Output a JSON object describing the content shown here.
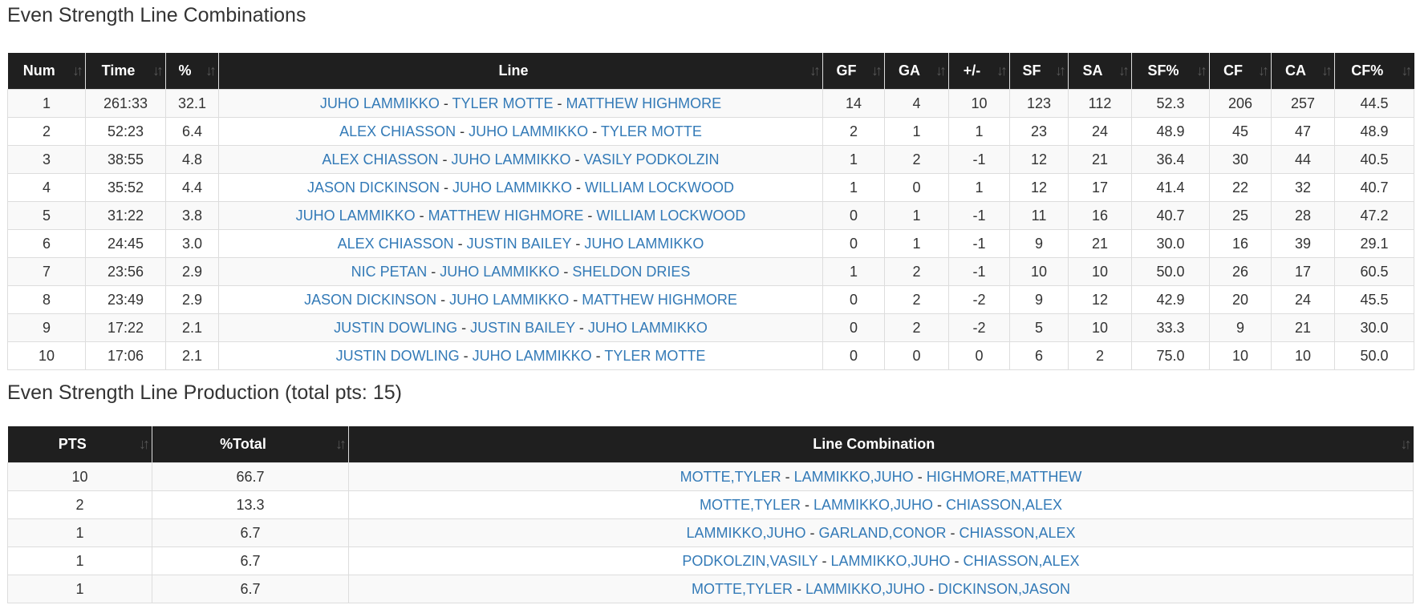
{
  "combos": {
    "title": "Even Strength Line Combinations",
    "headers": [
      "Num",
      "Time",
      "%",
      "Line",
      "GF",
      "GA",
      "+/-",
      "SF",
      "SA",
      "SF%",
      "CF",
      "CA",
      "CF%"
    ],
    "rows": [
      {
        "num": "1",
        "time": "261:33",
        "pct": "32.1",
        "players": [
          "JUHO LAMMIKKO",
          "TYLER MOTTE",
          "MATTHEW HIGHMORE"
        ],
        "stats": [
          "14",
          "4",
          "10",
          "123",
          "112",
          "52.3",
          "206",
          "257",
          "44.5"
        ]
      },
      {
        "num": "2",
        "time": "52:23",
        "pct": "6.4",
        "players": [
          "ALEX CHIASSON",
          "JUHO LAMMIKKO",
          "TYLER MOTTE"
        ],
        "stats": [
          "2",
          "1",
          "1",
          "23",
          "24",
          "48.9",
          "45",
          "47",
          "48.9"
        ]
      },
      {
        "num": "3",
        "time": "38:55",
        "pct": "4.8",
        "players": [
          "ALEX CHIASSON",
          "JUHO LAMMIKKO",
          "VASILY PODKOLZIN"
        ],
        "stats": [
          "1",
          "2",
          "-1",
          "12",
          "21",
          "36.4",
          "30",
          "44",
          "40.5"
        ]
      },
      {
        "num": "4",
        "time": "35:52",
        "pct": "4.4",
        "players": [
          "JASON DICKINSON",
          "JUHO LAMMIKKO",
          "WILLIAM LOCKWOOD"
        ],
        "stats": [
          "1",
          "0",
          "1",
          "12",
          "17",
          "41.4",
          "22",
          "32",
          "40.7"
        ]
      },
      {
        "num": "5",
        "time": "31:22",
        "pct": "3.8",
        "players": [
          "JUHO LAMMIKKO",
          "MATTHEW HIGHMORE",
          "WILLIAM LOCKWOOD"
        ],
        "stats": [
          "0",
          "1",
          "-1",
          "11",
          "16",
          "40.7",
          "25",
          "28",
          "47.2"
        ]
      },
      {
        "num": "6",
        "time": "24:45",
        "pct": "3.0",
        "players": [
          "ALEX CHIASSON",
          "JUSTIN BAILEY",
          "JUHO LAMMIKKO"
        ],
        "stats": [
          "0",
          "1",
          "-1",
          "9",
          "21",
          "30.0",
          "16",
          "39",
          "29.1"
        ]
      },
      {
        "num": "7",
        "time": "23:56",
        "pct": "2.9",
        "players": [
          "NIC PETAN",
          "JUHO LAMMIKKO",
          "SHELDON DRIES"
        ],
        "stats": [
          "1",
          "2",
          "-1",
          "10",
          "10",
          "50.0",
          "26",
          "17",
          "60.5"
        ]
      },
      {
        "num": "8",
        "time": "23:49",
        "pct": "2.9",
        "players": [
          "JASON DICKINSON",
          "JUHO LAMMIKKO",
          "MATTHEW HIGHMORE"
        ],
        "stats": [
          "0",
          "2",
          "-2",
          "9",
          "12",
          "42.9",
          "20",
          "24",
          "45.5"
        ]
      },
      {
        "num": "9",
        "time": "17:22",
        "pct": "2.1",
        "players": [
          "JUSTIN DOWLING",
          "JUSTIN BAILEY",
          "JUHO LAMMIKKO"
        ],
        "stats": [
          "0",
          "2",
          "-2",
          "5",
          "10",
          "33.3",
          "9",
          "21",
          "30.0"
        ]
      },
      {
        "num": "10",
        "time": "17:06",
        "pct": "2.1",
        "players": [
          "JUSTIN DOWLING",
          "JUHO LAMMIKKO",
          "TYLER MOTTE"
        ],
        "stats": [
          "0",
          "0",
          "0",
          "6",
          "2",
          "75.0",
          "10",
          "10",
          "50.0"
        ]
      }
    ]
  },
  "production": {
    "title": "Even Strength Line Production (total pts: 15)",
    "headers": [
      "PTS",
      "%Total",
      "Line Combination"
    ],
    "rows": [
      {
        "pts": "10",
        "pct": "66.7",
        "players": [
          "MOTTE,TYLER",
          "LAMMIKKO,JUHO",
          "HIGHMORE,MATTHEW"
        ]
      },
      {
        "pts": "2",
        "pct": "13.3",
        "players": [
          "MOTTE,TYLER",
          "LAMMIKKO,JUHO",
          "CHIASSON,ALEX"
        ]
      },
      {
        "pts": "1",
        "pct": "6.7",
        "players": [
          "LAMMIKKO,JUHO",
          "GARLAND,CONOR",
          "CHIASSON,ALEX"
        ]
      },
      {
        "pts": "1",
        "pct": "6.7",
        "players": [
          "PODKOLZIN,VASILY",
          "LAMMIKKO,JUHO",
          "CHIASSON,ALEX"
        ]
      },
      {
        "pts": "1",
        "pct": "6.7",
        "players": [
          "MOTTE,TYLER",
          "LAMMIKKO,JUHO",
          "DICKINSON,JASON"
        ]
      }
    ]
  },
  "separator": " - ",
  "sort_icon": "sort-arrows-icon",
  "colors": {
    "header_bg": "#1f1f1f",
    "link": "#337ab7"
  }
}
